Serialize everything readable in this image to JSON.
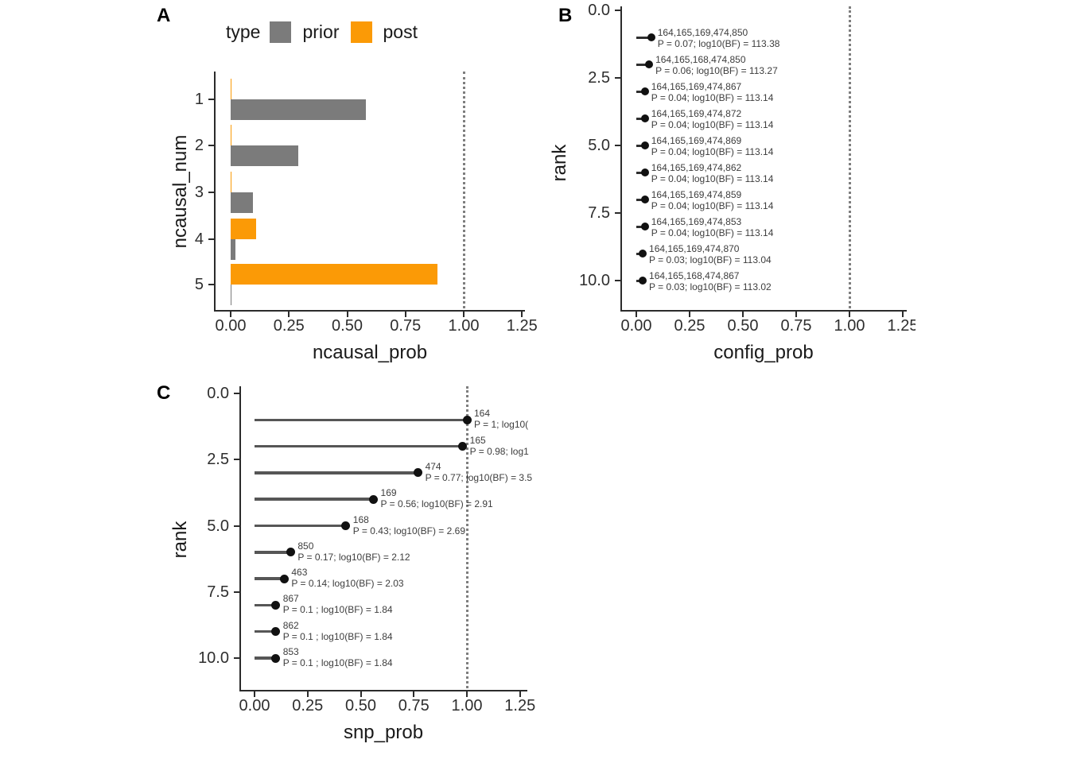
{
  "figure": {
    "background": "#ffffff",
    "ref_line_color": "#7e7e7e",
    "axis_color": "#2b2b2b"
  },
  "chart_data": [
    {
      "panel_label": "A",
      "type": "bar",
      "orientation": "horizontal",
      "title": "",
      "xlabel": "ncausal_prob",
      "ylabel": "ncausal_num",
      "categories": [
        "1",
        "2",
        "3",
        "4",
        "5"
      ],
      "series": [
        {
          "name": "prior",
          "color": "#7b7b7b",
          "values": [
            0.58,
            0.29,
            0.097,
            0.02,
            0.005
          ]
        },
        {
          "name": "post",
          "color": "#fb9a06",
          "values": [
            0.001,
            0.002,
            0.004,
            0.11,
            0.887
          ]
        }
      ],
      "legend": {
        "title": "type",
        "position": "top"
      },
      "xlim": [
        0,
        1.25
      ],
      "x_ticks": [
        0,
        0.25,
        0.5,
        0.75,
        1.0,
        1.25
      ],
      "x_tick_labels": [
        "0.00",
        "0.25",
        "0.50",
        "0.75",
        "1.00",
        "1.25"
      ],
      "ref_line_x": 1.0,
      "grid": false
    },
    {
      "panel_label": "B",
      "type": "scatter",
      "title": "",
      "xlabel": "config_prob",
      "ylabel": "rank",
      "xlim": [
        0,
        1.25
      ],
      "x_ticks": [
        0,
        0.25,
        0.5,
        0.75,
        1.0,
        1.25
      ],
      "x_tick_labels": [
        "0.00",
        "0.25",
        "0.50",
        "0.75",
        "1.00",
        "1.25"
      ],
      "ylim_reversed": [
        0,
        11
      ],
      "y_ticks": [
        0,
        2.5,
        5,
        7.5,
        10
      ],
      "y_tick_labels": [
        "0.0",
        "2.5",
        "5.0",
        "7.5",
        "10.0"
      ],
      "ref_line_x": 1.0,
      "point_color": "#111111",
      "segment_color": "#2f2f2f",
      "grid": false,
      "points": [
        {
          "rank": 1,
          "x": 0.07,
          "label": "164,165,169,474,850",
          "annotation": "P = 0.07; log10(BF) = 113.38"
        },
        {
          "rank": 2,
          "x": 0.06,
          "label": "164,165,168,474,850",
          "annotation": "P = 0.06; log10(BF) = 113.27"
        },
        {
          "rank": 3,
          "x": 0.04,
          "label": "164,165,169,474,867",
          "annotation": "P = 0.04; log10(BF) = 113.14"
        },
        {
          "rank": 4,
          "x": 0.04,
          "label": "164,165,169,474,872",
          "annotation": "P = 0.04; log10(BF) = 113.14"
        },
        {
          "rank": 5,
          "x": 0.04,
          "label": "164,165,169,474,869",
          "annotation": "P = 0.04; log10(BF) = 113.14"
        },
        {
          "rank": 6,
          "x": 0.04,
          "label": "164,165,169,474,862",
          "annotation": "P = 0.04; log10(BF) = 113.14"
        },
        {
          "rank": 7,
          "x": 0.04,
          "label": "164,165,169,474,859",
          "annotation": "P = 0.04; log10(BF) = 113.14"
        },
        {
          "rank": 8,
          "x": 0.04,
          "label": "164,165,169,474,853",
          "annotation": "P = 0.04; log10(BF) = 113.14"
        },
        {
          "rank": 9,
          "x": 0.03,
          "label": "164,165,169,474,870",
          "annotation": "P = 0.03; log10(BF) = 113.04"
        },
        {
          "rank": 10,
          "x": 0.03,
          "label": "164,165,168,474,867",
          "annotation": "P = 0.03; log10(BF) = 113.02"
        }
      ]
    },
    {
      "panel_label": "C",
      "type": "scatter",
      "title": "",
      "xlabel": "snp_prob",
      "ylabel": "rank",
      "xlim": [
        0,
        1.25
      ],
      "x_ticks": [
        0,
        0.25,
        0.5,
        0.75,
        1.0,
        1.25
      ],
      "x_tick_labels": [
        "0.00",
        "0.25",
        "0.50",
        "0.75",
        "1.00",
        "1.25"
      ],
      "ylim_reversed": [
        0,
        11
      ],
      "y_ticks": [
        0,
        2.5,
        5,
        7.5,
        10
      ],
      "y_tick_labels": [
        "0.0",
        "2.5",
        "5.0",
        "7.5",
        "10.0"
      ],
      "ref_line_x": 1.0,
      "point_color": "#111111",
      "segment_color": "#565656",
      "grid": false,
      "points": [
        {
          "rank": 1,
          "x": 1.0,
          "label": "164",
          "annotation": "P = 1; log10("
        },
        {
          "rank": 2,
          "x": 0.98,
          "label": "165",
          "annotation": "P = 0.98; log1"
        },
        {
          "rank": 3,
          "x": 0.77,
          "label": "474",
          "annotation": "P = 0.77; log10(BF) = 3.5"
        },
        {
          "rank": 4,
          "x": 0.56,
          "label": "169",
          "annotation": "P = 0.56; log10(BF) = 2.91"
        },
        {
          "rank": 5,
          "x": 0.43,
          "label": "168",
          "annotation": "P = 0.43; log10(BF) = 2.69"
        },
        {
          "rank": 6,
          "x": 0.17,
          "label": "850",
          "annotation": "P = 0.17; log10(BF) = 2.12"
        },
        {
          "rank": 7,
          "x": 0.14,
          "label": "463",
          "annotation": "P = 0.14; log10(BF) = 2.03"
        },
        {
          "rank": 8,
          "x": 0.1,
          "label": "867",
          "annotation": "P = 0.1 ; log10(BF) = 1.84"
        },
        {
          "rank": 9,
          "x": 0.1,
          "label": "862",
          "annotation": "P = 0.1 ; log10(BF) = 1.84"
        },
        {
          "rank": 10,
          "x": 0.1,
          "label": "853",
          "annotation": "P = 0.1 ; log10(BF) = 1.84"
        }
      ]
    }
  ]
}
